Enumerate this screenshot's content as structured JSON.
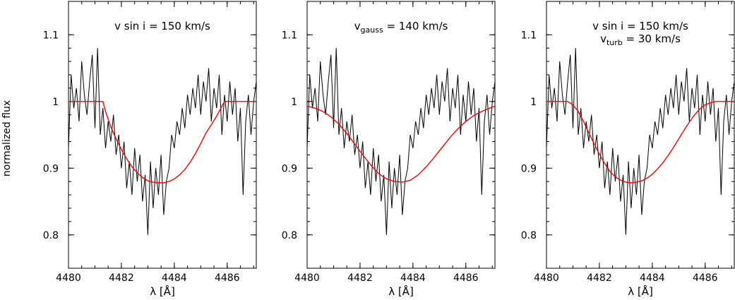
{
  "chart_data": {
    "type": "line",
    "shared_ylabel": "normalized flux",
    "xlim": [
      4480,
      4487.1
    ],
    "ylim": [
      0.75,
      1.15
    ],
    "x_ticks": [
      4480,
      4482,
      4484,
      4486
    ],
    "y_ticks": [
      0.8,
      0.9,
      1,
      1.1
    ],
    "y_tick_labels": [
      "0.8",
      "0.9",
      "1",
      "1.1"
    ],
    "xlabel": "λ [Å]",
    "colors": {
      "observed": "#000000",
      "model": "#ff0000",
      "axes": "#000000"
    },
    "observed": {
      "x": [
        4480.0,
        4480.1,
        4480.2,
        4480.3,
        4480.4,
        4480.5,
        4480.6,
        4480.7,
        4480.8,
        4480.9,
        4481.0,
        4481.1,
        4481.2,
        4481.3,
        4481.4,
        4481.5,
        4481.6,
        4481.7,
        4481.8,
        4481.9,
        4482.0,
        4482.1,
        4482.2,
        4482.3,
        4482.4,
        4482.5,
        4482.6,
        4482.7,
        4482.8,
        4482.9,
        4483.0,
        4483.1,
        4483.2,
        4483.3,
        4483.4,
        4483.5,
        4483.6,
        4483.7,
        4483.8,
        4483.9,
        4484.0,
        4484.1,
        4484.2,
        4484.3,
        4484.4,
        4484.5,
        4484.6,
        4484.7,
        4484.8,
        4484.9,
        4485.0,
        4485.1,
        4485.2,
        4485.3,
        4485.4,
        4485.5,
        4485.6,
        4485.7,
        4485.8,
        4485.9,
        4486.0,
        4486.1,
        4486.2,
        4486.3,
        4486.4,
        4486.5,
        4486.6,
        4486.7,
        4486.8,
        4486.9,
        4487.0,
        4487.1
      ],
      "y": [
        0.93,
        1.04,
        0.99,
        1.02,
        0.97,
        1.06,
        1.01,
        0.98,
        1.03,
        1.07,
        0.96,
        1.08,
        0.95,
        0.99,
        0.93,
        0.97,
        0.94,
        0.98,
        0.92,
        0.95,
        0.9,
        0.94,
        0.87,
        0.91,
        0.86,
        0.93,
        0.88,
        0.92,
        0.85,
        0.89,
        0.8,
        0.91,
        0.84,
        0.9,
        0.86,
        0.92,
        0.83,
        0.88,
        0.9,
        0.95,
        0.93,
        0.97,
        0.95,
        0.99,
        0.96,
        1.01,
        0.98,
        1.02,
        0.99,
        1.04,
        0.98,
        1.03,
        1.0,
        1.05,
        0.97,
        1.02,
        0.99,
        1.04,
        0.95,
        1.01,
        0.97,
        1.03,
        0.98,
        1.02,
        0.94,
        0.99,
        0.86,
        0.97,
        1.01,
        0.95,
        1.0,
        1.03
      ]
    },
    "panels": [
      {
        "annotations": [
          {
            "text": "v sin i = 150 km/s",
            "sub": "",
            "after": ""
          }
        ],
        "model": {
          "x": [
            4480.0,
            4481.3,
            4481.4,
            4481.6,
            4481.8,
            4482.0,
            4482.2,
            4482.4,
            4482.6,
            4482.8,
            4483.0,
            4483.2,
            4483.4,
            4483.6,
            4483.8,
            4484.0,
            4484.2,
            4484.4,
            4484.6,
            4484.8,
            4485.0,
            4485.2,
            4485.4,
            4485.6,
            4485.8,
            4485.9,
            4487.1
          ],
          "y": [
            1.0,
            1.0,
            0.985,
            0.962,
            0.944,
            0.928,
            0.914,
            0.902,
            0.893,
            0.886,
            0.881,
            0.879,
            0.878,
            0.878,
            0.88,
            0.884,
            0.89,
            0.898,
            0.909,
            0.922,
            0.937,
            0.953,
            0.965,
            0.978,
            0.993,
            1.0,
            1.0
          ]
        }
      },
      {
        "annotations": [
          {
            "text": "v",
            "sub": "gauss",
            "after": " = 140 km/s"
          }
        ],
        "model": {
          "x": [
            4480.0,
            4480.3,
            4480.6,
            4480.9,
            4481.2,
            4481.5,
            4481.8,
            4482.1,
            4482.4,
            4482.7,
            4483.0,
            4483.3,
            4483.6,
            4483.9,
            4484.2,
            4484.5,
            4484.8,
            4485.1,
            4485.4,
            4485.7,
            4486.0,
            4486.3,
            4486.6,
            4486.9,
            4487.1
          ],
          "y": [
            0.993,
            0.99,
            0.985,
            0.977,
            0.966,
            0.952,
            0.936,
            0.92,
            0.905,
            0.892,
            0.884,
            0.88,
            0.879,
            0.882,
            0.89,
            0.902,
            0.916,
            0.931,
            0.946,
            0.959,
            0.97,
            0.979,
            0.985,
            0.99,
            0.993
          ]
        }
      },
      {
        "annotations": [
          {
            "text": "v sin i = 150 km/s",
            "sub": "",
            "after": ""
          },
          {
            "text": "v",
            "sub": "turb",
            "after": " = 30 km/s"
          }
        ],
        "model": {
          "x": [
            4480.0,
            4480.8,
            4481.0,
            4481.2,
            4481.4,
            4481.6,
            4481.8,
            4482.0,
            4482.2,
            4482.4,
            4482.6,
            4482.8,
            4483.0,
            4483.2,
            4483.4,
            4483.6,
            4483.8,
            4484.0,
            4484.2,
            4484.4,
            4484.6,
            4484.8,
            4485.0,
            4485.2,
            4485.4,
            4485.6,
            4485.8,
            4486.0,
            4486.2,
            4486.4,
            4486.6,
            4487.1
          ],
          "y": [
            1.0,
            1.0,
            0.995,
            0.985,
            0.97,
            0.953,
            0.937,
            0.921,
            0.907,
            0.895,
            0.887,
            0.882,
            0.879,
            0.878,
            0.879,
            0.881,
            0.885,
            0.891,
            0.899,
            0.908,
            0.919,
            0.931,
            0.944,
            0.957,
            0.969,
            0.98,
            0.989,
            0.995,
            0.998,
            1.0,
            1.0,
            1.0
          ]
        }
      }
    ]
  }
}
